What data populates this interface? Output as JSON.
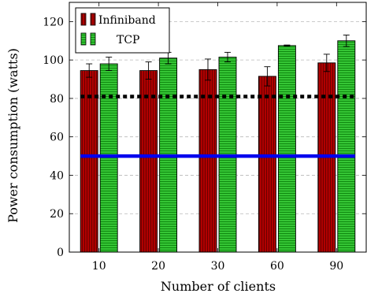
{
  "chart_data": {
    "type": "bar",
    "title": "",
    "xlabel": "Number of clients",
    "ylabel": "Power consumption (watts)",
    "categories": [
      "10",
      "20",
      "30",
      "60",
      "90"
    ],
    "ylim": [
      0,
      130
    ],
    "yticks": [
      0,
      20,
      40,
      60,
      80,
      100,
      120
    ],
    "grid": true,
    "grid_axis": "y",
    "legend_position": "top-left",
    "series": [
      {
        "name": "Infiniband",
        "color": "#b00000",
        "values": [
          94.5,
          94.5,
          95,
          91.5,
          98.5
        ],
        "errors": [
          3.5,
          4.5,
          5.5,
          5,
          4.5
        ]
      },
      {
        "name": "TCP",
        "color": "#2fbf2f",
        "values": [
          98,
          101,
          101.5,
          107.5,
          110
        ],
        "errors": [
          3.5,
          3,
          2.5,
          0.3,
          3
        ]
      }
    ],
    "reference_lines": [
      {
        "value": 81,
        "style": "dotted",
        "color": "#000000"
      },
      {
        "value": 50,
        "style": "solid",
        "color": "#0000ee"
      }
    ]
  }
}
